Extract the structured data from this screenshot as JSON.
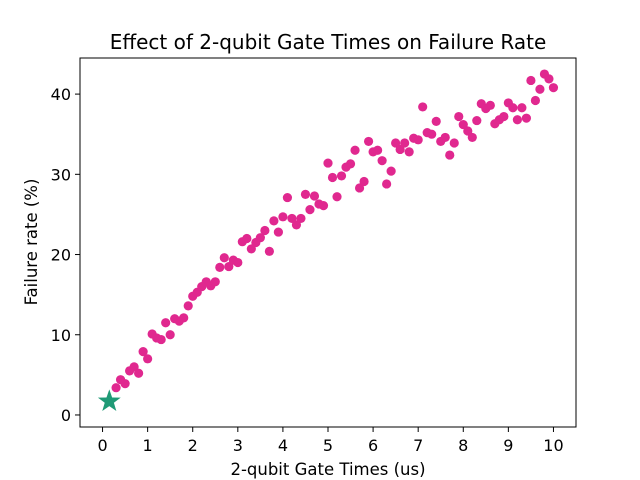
{
  "chart_data": {
    "type": "scatter",
    "title": "Effect of 2-qubit Gate Times on Failure Rate",
    "xlabel": "2-qubit Gate Times (us)",
    "ylabel": "Failure rate (%)",
    "xlim": [
      -0.5,
      10.5
    ],
    "ylim": [
      -1.5,
      44.5
    ],
    "xticks": [
      "0",
      "1",
      "2",
      "3",
      "4",
      "5",
      "6",
      "7",
      "8",
      "9",
      "10"
    ],
    "yticks": [
      "0",
      "10",
      "20",
      "30",
      "40"
    ],
    "grid": false,
    "legend": "none",
    "series": [
      {
        "marker": "circle",
        "color": "#e0288f",
        "points": [
          [
            0.3,
            3.4
          ],
          [
            0.4,
            4.4
          ],
          [
            0.5,
            3.9
          ],
          [
            0.6,
            5.5
          ],
          [
            0.7,
            6.0
          ],
          [
            0.8,
            5.2
          ],
          [
            0.9,
            7.9
          ],
          [
            1.0,
            7.0
          ],
          [
            1.1,
            10.1
          ],
          [
            1.2,
            9.6
          ],
          [
            1.3,
            9.4
          ],
          [
            1.4,
            11.5
          ],
          [
            1.5,
            10.0
          ],
          [
            1.6,
            12.0
          ],
          [
            1.7,
            11.7
          ],
          [
            1.8,
            12.1
          ],
          [
            1.9,
            13.6
          ],
          [
            2.0,
            14.8
          ],
          [
            2.1,
            15.3
          ],
          [
            2.2,
            16.0
          ],
          [
            2.3,
            16.6
          ],
          [
            2.4,
            16.1
          ],
          [
            2.5,
            16.6
          ],
          [
            2.6,
            18.4
          ],
          [
            2.7,
            19.6
          ],
          [
            2.8,
            18.5
          ],
          [
            2.9,
            19.3
          ],
          [
            3.0,
            19.0
          ],
          [
            3.1,
            21.6
          ],
          [
            3.2,
            22.0
          ],
          [
            3.3,
            20.7
          ],
          [
            3.4,
            21.5
          ],
          [
            3.5,
            22.1
          ],
          [
            3.6,
            23.0
          ],
          [
            3.7,
            20.4
          ],
          [
            3.8,
            24.2
          ],
          [
            3.9,
            22.8
          ],
          [
            4.0,
            24.7
          ],
          [
            4.1,
            27.1
          ],
          [
            4.2,
            24.5
          ],
          [
            4.3,
            23.7
          ],
          [
            4.4,
            24.5
          ],
          [
            4.5,
            27.5
          ],
          [
            4.6,
            25.6
          ],
          [
            4.7,
            27.3
          ],
          [
            4.8,
            26.3
          ],
          [
            4.9,
            26.1
          ],
          [
            5.0,
            31.4
          ],
          [
            5.1,
            29.6
          ],
          [
            5.2,
            27.2
          ],
          [
            5.3,
            29.8
          ],
          [
            5.4,
            30.9
          ],
          [
            5.5,
            31.3
          ],
          [
            5.6,
            33.0
          ],
          [
            5.7,
            28.3
          ],
          [
            5.8,
            29.1
          ],
          [
            5.9,
            34.1
          ],
          [
            6.0,
            32.8
          ],
          [
            6.1,
            33.0
          ],
          [
            6.2,
            31.7
          ],
          [
            6.3,
            28.8
          ],
          [
            6.4,
            30.4
          ],
          [
            6.5,
            33.9
          ],
          [
            6.6,
            33.1
          ],
          [
            6.7,
            33.9
          ],
          [
            6.8,
            32.8
          ],
          [
            6.9,
            34.5
          ],
          [
            7.0,
            34.3
          ],
          [
            7.1,
            38.4
          ],
          [
            7.2,
            35.2
          ],
          [
            7.3,
            35.0
          ],
          [
            7.4,
            36.6
          ],
          [
            7.5,
            34.1
          ],
          [
            7.6,
            34.6
          ],
          [
            7.7,
            32.4
          ],
          [
            7.8,
            33.9
          ],
          [
            7.9,
            37.2
          ],
          [
            8.0,
            36.2
          ],
          [
            8.1,
            35.4
          ],
          [
            8.2,
            34.6
          ],
          [
            8.3,
            36.7
          ],
          [
            8.4,
            38.8
          ],
          [
            8.5,
            38.2
          ],
          [
            8.6,
            38.6
          ],
          [
            8.7,
            36.3
          ],
          [
            8.8,
            36.8
          ],
          [
            8.9,
            37.2
          ],
          [
            9.0,
            38.9
          ],
          [
            9.1,
            38.3
          ],
          [
            9.2,
            36.8
          ],
          [
            9.3,
            38.3
          ],
          [
            9.4,
            37.0
          ],
          [
            9.5,
            41.7
          ],
          [
            9.6,
            39.2
          ],
          [
            9.7,
            40.6
          ],
          [
            9.8,
            42.5
          ],
          [
            9.9,
            41.9
          ],
          [
            10.0,
            40.8
          ]
        ]
      },
      {
        "marker": "star",
        "color": "#1f9a76",
        "points": [
          [
            0.15,
            1.7
          ]
        ]
      }
    ]
  }
}
